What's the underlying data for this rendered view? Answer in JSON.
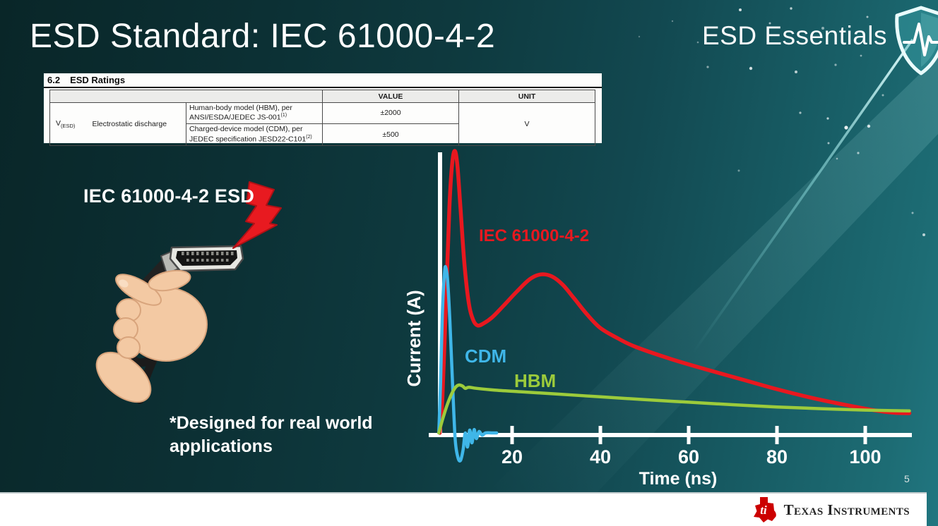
{
  "slide": {
    "title": "ESD Standard: IEC 61000-4-2",
    "series_brand": "ESD Essentials",
    "illustration_label": "IEC 61000-4-2 ESD",
    "footnote": "*Designed for real world applications",
    "page_number": "5"
  },
  "ratings_table": {
    "section_number": "6.2",
    "section_title": "ESD Ratings",
    "value_header": "VALUE",
    "unit_header": "UNIT",
    "symbol_base": "V",
    "symbol_sub": "(ESD)",
    "parameter": "Electrostatic discharge",
    "rows": [
      {
        "description": "Human-body model (HBM), per ANSI/ESDA/JEDEC JS-001",
        "note": "(1)",
        "value": "±2000"
      },
      {
        "description": "Charged-device model (CDM), per JEDEC specification JESD22-C101",
        "note": "(2)",
        "value": "±500"
      }
    ],
    "unit": "V"
  },
  "chart_data": {
    "type": "line",
    "title": "",
    "xlabel": "Time (ns)",
    "ylabel": "Current (A)",
    "x_ticks": [
      20,
      40,
      60,
      80,
      100
    ],
    "xlim": [
      0,
      112
    ],
    "y_normalized_peak": 1.0,
    "grid": false,
    "legend_position": "inline-labels",
    "series": [
      {
        "name": "IEC 61000-4-2",
        "color": "#e8181f",
        "stroke_width": 5.5,
        "points": [
          [
            3.6,
            0.0
          ],
          [
            4.2,
            0.12
          ],
          [
            5.0,
            0.45
          ],
          [
            5.8,
            0.8
          ],
          [
            6.4,
            0.95
          ],
          [
            7.0,
            1.0
          ],
          [
            7.6,
            0.95
          ],
          [
            8.3,
            0.8
          ],
          [
            9.2,
            0.6
          ],
          [
            10.2,
            0.46
          ],
          [
            11.2,
            0.4
          ],
          [
            12.2,
            0.381
          ],
          [
            13.5,
            0.388
          ],
          [
            15.5,
            0.41
          ],
          [
            18,
            0.45
          ],
          [
            21,
            0.5
          ],
          [
            24,
            0.545
          ],
          [
            26.5,
            0.562
          ],
          [
            29,
            0.555
          ],
          [
            31.5,
            0.525
          ],
          [
            34,
            0.478
          ],
          [
            37,
            0.42
          ],
          [
            40,
            0.372
          ],
          [
            44,
            0.335
          ],
          [
            48,
            0.305
          ],
          [
            56,
            0.262
          ],
          [
            64,
            0.225
          ],
          [
            72,
            0.19
          ],
          [
            80,
            0.155
          ],
          [
            88,
            0.124
          ],
          [
            96,
            0.098
          ],
          [
            103,
            0.078
          ],
          [
            107,
            0.071
          ],
          [
            110,
            0.07
          ]
        ]
      },
      {
        "name": "CDM",
        "color": "#3fb6e8",
        "stroke_width": 4.5,
        "points": [
          [
            3.4,
            0.0
          ],
          [
            3.8,
            0.18
          ],
          [
            4.2,
            0.42
          ],
          [
            4.7,
            0.57
          ],
          [
            5.0,
            0.585
          ],
          [
            5.4,
            0.54
          ],
          [
            5.9,
            0.4
          ],
          [
            6.5,
            0.18
          ],
          [
            7.1,
            -0.02
          ],
          [
            7.7,
            -0.085
          ],
          [
            8.3,
            -0.098
          ],
          [
            8.9,
            -0.06
          ],
          [
            9.4,
            0.0
          ],
          [
            9.9,
            -0.05
          ],
          [
            10.4,
            0.01
          ],
          [
            10.9,
            -0.035
          ],
          [
            11.4,
            0.012
          ],
          [
            11.9,
            -0.02
          ],
          [
            12.5,
            0.005
          ],
          [
            13.2,
            -0.008
          ],
          [
            14.0,
            0.0
          ],
          [
            15.5,
            0.0
          ],
          [
            16.5,
            0.0
          ]
        ]
      },
      {
        "name": "HBM",
        "color": "#9ccb3b",
        "stroke_width": 4.5,
        "points": [
          [
            3.4,
            0.0
          ],
          [
            4.2,
            0.045
          ],
          [
            5.2,
            0.095
          ],
          [
            6.2,
            0.135
          ],
          [
            7.2,
            0.162
          ],
          [
            8.0,
            0.17
          ],
          [
            8.8,
            0.166
          ],
          [
            9.4,
            0.158
          ],
          [
            10.2,
            0.162
          ],
          [
            12,
            0.158
          ],
          [
            16,
            0.152
          ],
          [
            22,
            0.146
          ],
          [
            30,
            0.138
          ],
          [
            40,
            0.128
          ],
          [
            50,
            0.118
          ],
          [
            60,
            0.109
          ],
          [
            70,
            0.1
          ],
          [
            80,
            0.092
          ],
          [
            90,
            0.086
          ],
          [
            100,
            0.081
          ],
          [
            106,
            0.079
          ],
          [
            110,
            0.078
          ]
        ]
      }
    ]
  },
  "footer": {
    "brand": "Texas Instruments"
  },
  "colors": {
    "background_dark": "#092628",
    "background_light": "#1d6c74",
    "iec_red": "#e8181f",
    "cdm_blue": "#3fb6e8",
    "hbm_green": "#9ccb3b",
    "bolt_red": "#e81a20",
    "ti_logo_red": "#cc0000",
    "axis_white": "#ffffff"
  }
}
